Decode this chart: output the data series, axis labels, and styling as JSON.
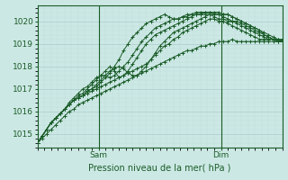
{
  "xlabel": "Pression niveau de la mer( hPa )",
  "bg_color": "#cce8e4",
  "grid_color_major": "#aacccc",
  "grid_color_minor": "#bbdddd",
  "line_color": "#1a5c28",
  "ylim": [
    1014.4,
    1020.7
  ],
  "xlim": [
    0,
    108
  ],
  "yticks": [
    1015,
    1016,
    1017,
    1018,
    1019,
    1020
  ],
  "xtick_positions": [
    27,
    81
  ],
  "xticklabels": [
    "Sam",
    "Dim"
  ],
  "vline_positions": [
    27,
    81
  ],
  "series": [
    {
      "x": [
        0,
        2,
        4,
        6,
        8,
        10,
        12,
        14,
        16,
        18,
        20,
        22,
        24,
        26,
        28,
        30,
        32,
        34,
        36,
        38,
        40,
        42,
        44,
        46,
        48,
        50,
        52,
        54,
        56,
        58,
        60,
        62,
        64,
        66,
        68,
        70,
        72,
        74,
        76,
        78,
        80,
        82,
        84,
        86,
        88,
        90,
        92,
        94,
        96,
        98,
        100,
        102,
        104,
        106,
        108
      ],
      "y": [
        1014.6,
        1014.9,
        1015.2,
        1015.5,
        1015.7,
        1015.9,
        1016.1,
        1016.3,
        1016.5,
        1016.6,
        1016.7,
        1016.8,
        1016.9,
        1017.0,
        1017.1,
        1017.2,
        1017.3,
        1017.4,
        1017.5,
        1017.6,
        1017.7,
        1017.8,
        1017.9,
        1018.0,
        1018.1,
        1018.3,
        1018.5,
        1018.7,
        1018.9,
        1019.0,
        1019.2,
        1019.3,
        1019.5,
        1019.6,
        1019.7,
        1019.8,
        1019.9,
        1020.0,
        1020.1,
        1020.1,
        1020.0,
        1020.0,
        1019.9,
        1019.8,
        1019.7,
        1019.6,
        1019.5,
        1019.4,
        1019.3,
        1019.2,
        1019.2,
        1019.2,
        1019.2,
        1019.1,
        1019.1
      ]
    },
    {
      "x": [
        0,
        2,
        4,
        6,
        8,
        10,
        12,
        14,
        16,
        18,
        20,
        22,
        24,
        26,
        28,
        30,
        32,
        34,
        36,
        38,
        40,
        42,
        44,
        46,
        48,
        50,
        52,
        54,
        56,
        58,
        60,
        62,
        64,
        66,
        68,
        70,
        72,
        74,
        76,
        78,
        80,
        82,
        84,
        86,
        88,
        90,
        92,
        94,
        96,
        98,
        100,
        102,
        104,
        106,
        108
      ],
      "y": [
        1014.6,
        1014.9,
        1015.2,
        1015.5,
        1015.7,
        1015.9,
        1016.1,
        1016.3,
        1016.5,
        1016.6,
        1016.7,
        1016.9,
        1017.0,
        1017.1,
        1017.3,
        1017.5,
        1017.7,
        1018.0,
        1018.3,
        1018.7,
        1019.0,
        1019.3,
        1019.5,
        1019.7,
        1019.9,
        1020.0,
        1020.1,
        1020.2,
        1020.3,
        1020.2,
        1020.1,
        1020.1,
        1020.2,
        1020.2,
        1020.3,
        1020.3,
        1020.3,
        1020.3,
        1020.3,
        1020.2,
        1020.1,
        1020.1,
        1020.0,
        1020.0,
        1020.0,
        1019.9,
        1019.8,
        1019.7,
        1019.6,
        1019.5,
        1019.4,
        1019.3,
        1019.2,
        1019.2,
        1019.1
      ]
    },
    {
      "x": [
        0,
        2,
        4,
        6,
        8,
        10,
        12,
        14,
        16,
        18,
        20,
        22,
        24,
        26,
        28,
        30,
        32,
        34,
        36,
        38,
        40,
        42,
        44,
        46,
        48,
        50,
        52,
        54,
        56,
        58,
        60,
        62,
        64,
        66,
        68,
        70,
        72,
        74,
        76,
        78,
        80,
        82,
        84,
        86,
        88,
        90,
        92,
        94,
        96,
        98,
        100,
        102,
        104,
        106,
        108
      ],
      "y": [
        1014.6,
        1014.9,
        1015.2,
        1015.5,
        1015.7,
        1015.9,
        1016.1,
        1016.3,
        1016.5,
        1016.6,
        1016.7,
        1016.9,
        1017.0,
        1017.2,
        1017.4,
        1017.6,
        1017.8,
        1017.9,
        1018.0,
        1017.9,
        1017.7,
        1017.6,
        1017.6,
        1017.8,
        1018.0,
        1018.3,
        1018.6,
        1018.9,
        1019.1,
        1019.3,
        1019.5,
        1019.6,
        1019.7,
        1019.8,
        1019.9,
        1020.0,
        1020.1,
        1020.2,
        1020.3,
        1020.3,
        1020.3,
        1020.3,
        1020.3,
        1020.2,
        1020.1,
        1020.0,
        1019.9,
        1019.8,
        1019.7,
        1019.6,
        1019.4,
        1019.3,
        1019.2,
        1019.2,
        1019.1
      ]
    },
    {
      "x": [
        0,
        2,
        4,
        6,
        8,
        10,
        12,
        14,
        16,
        18,
        20,
        22,
        24,
        26,
        28,
        30,
        32,
        34,
        36,
        38,
        40,
        42,
        44,
        46,
        48,
        50,
        52,
        54,
        56,
        58,
        60,
        62,
        64,
        66,
        68,
        70,
        72,
        74,
        76,
        78,
        80,
        82,
        84,
        86,
        88,
        90,
        92,
        94,
        96,
        98,
        100,
        102,
        104,
        106,
        108
      ],
      "y": [
        1014.6,
        1014.9,
        1015.2,
        1015.5,
        1015.7,
        1015.9,
        1016.1,
        1016.3,
        1016.5,
        1016.7,
        1016.8,
        1017.0,
        1017.2,
        1017.4,
        1017.6,
        1017.8,
        1018.0,
        1017.8,
        1017.5,
        1017.6,
        1017.8,
        1018.1,
        1018.4,
        1018.7,
        1019.0,
        1019.2,
        1019.4,
        1019.5,
        1019.6,
        1019.7,
        1019.8,
        1019.9,
        1020.0,
        1020.1,
        1020.2,
        1020.3,
        1020.3,
        1020.4,
        1020.4,
        1020.4,
        1020.4,
        1020.3,
        1020.3,
        1020.2,
        1020.1,
        1020.0,
        1019.9,
        1019.8,
        1019.7,
        1019.6,
        1019.5,
        1019.4,
        1019.3,
        1019.2,
        1019.2
      ]
    },
    {
      "x": [
        0,
        2,
        4,
        6,
        8,
        10,
        12,
        14,
        16,
        18,
        20,
        22,
        24,
        26,
        28,
        30,
        32,
        34,
        36,
        38,
        40,
        42,
        44,
        46,
        48,
        50,
        52,
        54,
        56,
        58,
        60,
        62,
        64,
        66,
        68,
        70,
        72,
        74,
        76,
        78,
        80,
        82,
        84,
        86,
        88,
        90,
        92,
        94,
        96,
        98,
        100,
        102,
        104,
        106,
        108
      ],
      "y": [
        1014.6,
        1014.9,
        1015.2,
        1015.5,
        1015.7,
        1015.9,
        1016.1,
        1016.4,
        1016.6,
        1016.8,
        1017.0,
        1017.1,
        1017.3,
        1017.5,
        1017.6,
        1017.6,
        1017.5,
        1017.6,
        1017.8,
        1018.0,
        1018.2,
        1018.5,
        1018.8,
        1019.1,
        1019.3,
        1019.5,
        1019.7,
        1019.8,
        1019.9,
        1020.0,
        1020.1,
        1020.1,
        1020.2,
        1020.3,
        1020.3,
        1020.4,
        1020.4,
        1020.4,
        1020.4,
        1020.3,
        1020.3,
        1020.2,
        1020.1,
        1020.0,
        1019.9,
        1019.8,
        1019.7,
        1019.6,
        1019.5,
        1019.4,
        1019.3,
        1019.2,
        1019.2,
        1019.1,
        1019.1
      ]
    },
    {
      "x": [
        0,
        2,
        4,
        6,
        8,
        10,
        12,
        14,
        16,
        18,
        20,
        22,
        24,
        26,
        28,
        30,
        32,
        34,
        36,
        38,
        40,
        42,
        44,
        46,
        48,
        50,
        52,
        54,
        56,
        58,
        60,
        62,
        64,
        66,
        68,
        70,
        72,
        74,
        76,
        78,
        80,
        82,
        84,
        86,
        88,
        90,
        92,
        94,
        96,
        98,
        100,
        102,
        104,
        106,
        108
      ],
      "y": [
        1014.6,
        1014.8,
        1015.0,
        1015.2,
        1015.4,
        1015.6,
        1015.8,
        1016.0,
        1016.1,
        1016.3,
        1016.4,
        1016.5,
        1016.6,
        1016.7,
        1016.8,
        1016.9,
        1017.0,
        1017.1,
        1017.2,
        1017.3,
        1017.4,
        1017.5,
        1017.6,
        1017.7,
        1017.8,
        1017.9,
        1018.0,
        1018.1,
        1018.2,
        1018.3,
        1018.4,
        1018.5,
        1018.6,
        1018.7,
        1018.7,
        1018.8,
        1018.9,
        1018.9,
        1019.0,
        1019.0,
        1019.1,
        1019.1,
        1019.1,
        1019.2,
        1019.1,
        1019.1,
        1019.1,
        1019.1,
        1019.1,
        1019.1,
        1019.1,
        1019.1,
        1019.1,
        1019.1,
        1019.2
      ]
    }
  ]
}
